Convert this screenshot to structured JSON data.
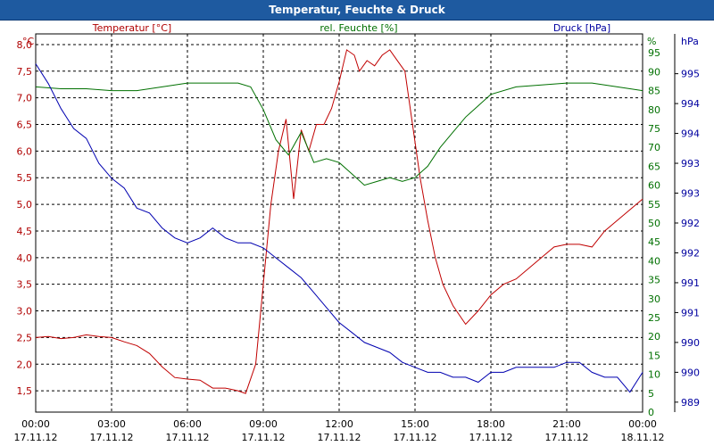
{
  "chart_data": {
    "type": "line",
    "title": "Temperatur, Feuchte & Druck",
    "x_ticks": [
      {
        "h": 0,
        "time": "00:00",
        "date": "17.11.12"
      },
      {
        "h": 3,
        "time": "03:00",
        "date": "17.11.12"
      },
      {
        "h": 6,
        "time": "06:00",
        "date": "17.11.12"
      },
      {
        "h": 9,
        "time": "09:00",
        "date": "17.11.12"
      },
      {
        "h": 12,
        "time": "12:00",
        "date": "17.11.12"
      },
      {
        "h": 15,
        "time": "15:00",
        "date": "17.11.12"
      },
      {
        "h": 18,
        "time": "18:00",
        "date": "17.11.12"
      },
      {
        "h": 21,
        "time": "21:00",
        "date": "17.11.12"
      },
      {
        "h": 24,
        "time": "00:00",
        "date": "18.11.12"
      }
    ],
    "left_axis": {
      "title": "Temperatur [°C]",
      "unit": "°C",
      "range": [
        1.1,
        8.2
      ],
      "ticks": [
        "8,0",
        "7,5",
        "7,0",
        "6,5",
        "6,0",
        "5,5",
        "5,0",
        "4,5",
        "4,0",
        "3,5",
        "3,0",
        "2,5",
        "2,0",
        "1,5"
      ],
      "tick_values": [
        8.0,
        7.5,
        7.0,
        6.5,
        6.0,
        5.5,
        5.0,
        4.5,
        4.0,
        3.5,
        3.0,
        2.5,
        2.0,
        1.5
      ],
      "color": "#b00000"
    },
    "mid_axis": {
      "title": "rel. Feuchte [%]",
      "unit": "%",
      "range": [
        0,
        100
      ],
      "ticks": [
        "95",
        "90",
        "85",
        "80",
        "75",
        "70",
        "65",
        "60",
        "55",
        "50",
        "45",
        "40",
        "35",
        "30",
        "25",
        "20",
        "15",
        "10",
        "5",
        "0"
      ],
      "tick_values": [
        95,
        90,
        85,
        80,
        75,
        70,
        65,
        60,
        55,
        50,
        45,
        40,
        35,
        30,
        25,
        20,
        15,
        10,
        5,
        0
      ],
      "color": "#007000"
    },
    "right_axis": {
      "title": "Druck [hPa]",
      "unit": "hPa",
      "range": [
        988.2,
        995.8
      ],
      "ticks": [
        "995",
        "994",
        "994",
        "993",
        "993",
        "992",
        "992",
        "991",
        "991",
        "990",
        "990",
        "989"
      ],
      "tick_values": [
        995.0,
        994.4,
        993.8,
        993.2,
        992.6,
        992.0,
        991.4,
        990.8,
        990.2,
        989.6,
        989.0,
        988.4
      ],
      "color": "#0000a0"
    },
    "series": [
      {
        "name": "Temperatur",
        "axis": "left",
        "color": "#c00000",
        "x": [
          0,
          0.5,
          1,
          1.5,
          2,
          2.5,
          3,
          3.5,
          4,
          4.5,
          5,
          5.5,
          6,
          6.5,
          7,
          7.5,
          8,
          8.3,
          8.7,
          9.0,
          9.3,
          9.6,
          9.9,
          10.2,
          10.5,
          10.8,
          11.1,
          11.4,
          11.7,
          12.0,
          12.3,
          12.6,
          12.8,
          13.1,
          13.4,
          13.7,
          14.0,
          14.3,
          14.6,
          14.9,
          15.2,
          15.5,
          15.8,
          16.1,
          16.5,
          17.0,
          17.5,
          18.0,
          18.5,
          19.0,
          19.5,
          20.0,
          20.5,
          21.0,
          21.5,
          22.0,
          22.5,
          23.0,
          23.5,
          24.0
        ],
        "values": [
          2.5,
          2.52,
          2.48,
          2.5,
          2.55,
          2.52,
          2.5,
          2.42,
          2.35,
          2.2,
          1.95,
          1.75,
          1.72,
          1.7,
          1.55,
          1.55,
          1.5,
          1.45,
          2.0,
          3.5,
          5.0,
          6.0,
          6.6,
          5.1,
          6.4,
          6.0,
          6.5,
          6.5,
          6.8,
          7.3,
          7.9,
          7.8,
          7.5,
          7.7,
          7.6,
          7.8,
          7.9,
          7.7,
          7.5,
          6.5,
          5.5,
          4.7,
          4.0,
          3.5,
          3.1,
          2.75,
          3.0,
          3.3,
          3.5,
          3.6,
          3.8,
          4.0,
          4.2,
          4.25,
          4.25,
          4.2,
          4.5,
          4.7,
          4.9,
          5.1
        ]
      },
      {
        "name": "rel. Feuchte",
        "axis": "mid",
        "color": "#007000",
        "x": [
          0,
          1,
          2,
          3,
          4,
          5,
          6,
          7,
          8,
          8.5,
          9,
          9.5,
          10,
          10.5,
          11,
          11.5,
          12,
          12.5,
          13,
          13.5,
          14,
          14.5,
          15,
          15.5,
          16,
          16.5,
          17,
          17.5,
          18,
          19,
          20,
          21,
          22,
          23,
          24
        ],
        "values": [
          86,
          85.5,
          85.5,
          85,
          85,
          86,
          87,
          87,
          87,
          86,
          80,
          72,
          68,
          74,
          66,
          67,
          66,
          63,
          60,
          61,
          62,
          61,
          62,
          65,
          70,
          74,
          78,
          81,
          84,
          86,
          86.5,
          87,
          87,
          86,
          85
        ]
      },
      {
        "name": "Druck",
        "axis": "right",
        "color": "#0000b0",
        "x": [
          0,
          0.5,
          1,
          1.5,
          2,
          2.5,
          3,
          3.5,
          4,
          4.5,
          5,
          5.5,
          6,
          6.5,
          7,
          7.5,
          8,
          8.5,
          9,
          9.5,
          10,
          10.5,
          11,
          11.5,
          12,
          12.5,
          13,
          13.5,
          14,
          14.5,
          15,
          15.5,
          16,
          16.5,
          17,
          17.5,
          18,
          18.5,
          19,
          19.5,
          20,
          20.5,
          21,
          21.5,
          22,
          22.5,
          23,
          23.5,
          24
        ],
        "values": [
          995.2,
          994.8,
          994.3,
          993.9,
          993.7,
          993.2,
          992.9,
          992.7,
          992.3,
          992.2,
          991.9,
          991.7,
          991.6,
          991.7,
          991.9,
          991.7,
          991.6,
          991.6,
          991.5,
          991.3,
          991.1,
          990.9,
          990.6,
          990.3,
          990.0,
          989.8,
          989.6,
          989.5,
          989.4,
          989.2,
          989.1,
          989.0,
          989.0,
          988.9,
          988.9,
          988.8,
          989.0,
          989.0,
          989.1,
          989.1,
          989.1,
          989.1,
          989.2,
          989.2,
          989.0,
          988.9,
          988.9,
          988.6,
          989.0
        ]
      }
    ],
    "grid": true
  }
}
